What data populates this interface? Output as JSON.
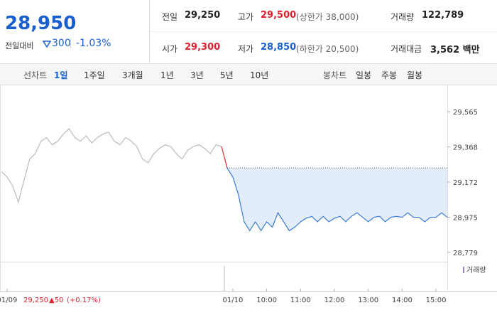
{
  "quote": {
    "price": "28,950",
    "change_label": "전일대비",
    "change": "300",
    "rate": "-1.03%",
    "stats": [
      {
        "label": "전일",
        "value": "29,250"
      },
      {
        "label": "고가",
        "value": "29,500",
        "note": "(상한가 38,000)"
      },
      {
        "label": "거래량",
        "value": "122,789"
      },
      {
        "label": "시가",
        "value": "29,300"
      },
      {
        "label": "저가",
        "value": "28,850",
        "note": "(하한가 20,500)"
      },
      {
        "label": "거래대금",
        "value": "3,562 백만"
      }
    ]
  },
  "tabs": {
    "line_label": "선차트",
    "line": [
      "1일",
      "1주일",
      "3개월",
      "1년",
      "3년",
      "5년",
      "10년"
    ],
    "candle_label": "봉차트",
    "candle": [
      "일봉",
      "주봉",
      "월봉"
    ]
  },
  "prev_day_summary": {
    "close": "29,250",
    "change": "▲50",
    "rate": "(+0.17%)"
  },
  "chart_data": {
    "type": "line",
    "categories": [
      null,
      "01/09",
      null,
      null,
      null,
      null,
      null,
      null,
      null,
      null,
      null,
      null,
      null,
      null,
      null,
      null,
      null,
      null,
      null,
      null,
      null,
      null,
      null,
      null,
      null,
      null,
      null,
      null,
      null,
      null,
      null,
      null,
      null,
      null,
      null,
      null,
      null,
      null,
      null,
      null,
      null,
      "01/10",
      null,
      null,
      null,
      null,
      null,
      "10:00",
      null,
      null,
      null,
      null,
      null,
      "11:00",
      null,
      null,
      null,
      null,
      null,
      "12:00",
      null,
      null,
      null,
      null,
      null,
      "13:00",
      null,
      null,
      null,
      null,
      null,
      "14:00",
      null,
      null,
      null,
      null,
      null,
      "15:00",
      null,
      null
    ],
    "series": [
      {
        "color": "#bbbbbb",
        "values": [
          29230,
          29200,
          29150,
          29060,
          29180,
          29300,
          29330,
          29400,
          29420,
          29380,
          29400,
          29440,
          29470,
          29420,
          29400,
          29430,
          29390,
          29420,
          29440,
          29450,
          29400,
          29380,
          29420,
          29400,
          29370,
          29300,
          29280,
          29330,
          29360,
          29380,
          29370,
          29330,
          29300,
          29350,
          29370,
          29380,
          29360,
          29330,
          29380,
          29370,
          null,
          null,
          null,
          null,
          null,
          null,
          null,
          null,
          null,
          null,
          null,
          null,
          null,
          null,
          null,
          null,
          null,
          null,
          null,
          null,
          null,
          null,
          null,
          null,
          null,
          null,
          null,
          null,
          null,
          null,
          null,
          null,
          null,
          null,
          null,
          null,
          null,
          null,
          null,
          null
        ]
      },
      {
        "color": "#3a7bd5",
        "values": [
          null,
          null,
          null,
          null,
          null,
          null,
          null,
          null,
          null,
          null,
          null,
          null,
          null,
          null,
          null,
          null,
          null,
          null,
          null,
          null,
          null,
          null,
          null,
          null,
          null,
          null,
          null,
          null,
          null,
          null,
          null,
          null,
          null,
          null,
          null,
          null,
          null,
          null,
          null,
          null,
          29250,
          29200,
          29100,
          28950,
          28900,
          28950,
          28900,
          28950,
          28920,
          29000,
          28950,
          28900,
          28920,
          28950,
          28970,
          28980,
          28950,
          28980,
          28950,
          28970,
          28980,
          28950,
          28980,
          29000,
          28975,
          28950,
          28975,
          28980,
          28950,
          28975,
          28980,
          28975,
          29000,
          28975,
          28975,
          28950,
          28975,
          28975,
          29000,
          28975
        ]
      },
      {
        "color": "#e03030",
        "values": [
          null,
          null,
          null,
          null,
          null,
          null,
          null,
          null,
          null,
          null,
          null,
          null,
          null,
          null,
          null,
          null,
          null,
          null,
          null,
          null,
          null,
          null,
          null,
          null,
          null,
          null,
          null,
          null,
          null,
          null,
          null,
          null,
          null,
          null,
          null,
          null,
          null,
          null,
          null,
          29370,
          29250,
          null,
          null,
          null,
          null,
          null,
          null,
          null,
          null,
          null,
          null,
          null,
          null,
          null,
          null,
          null,
          null,
          null,
          null,
          null,
          null,
          null,
          null,
          null,
          null,
          null,
          null,
          null,
          null,
          null,
          null,
          null,
          null,
          null,
          null,
          null,
          null,
          null,
          null,
          null
        ]
      }
    ],
    "reference_line": 29250,
    "ylim": [
      28727,
      29692
    ],
    "yticks": [
      {
        "value": 29565,
        "label": "29,565"
      },
      {
        "value": 29368,
        "label": "29,368"
      },
      {
        "value": 29172,
        "label": "29,172"
      },
      {
        "value": 28975,
        "label": "28,975"
      },
      {
        "value": 28779,
        "label": "28,779"
      }
    ],
    "grid": false,
    "volume_label": "거래량"
  }
}
